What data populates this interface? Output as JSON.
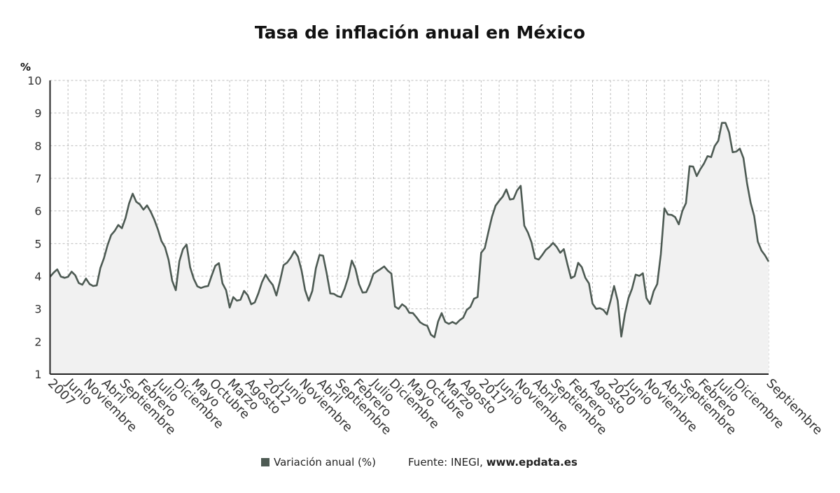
{
  "chart_data": {
    "type": "area",
    "title": "Tasa de inflación anual en México",
    "ylabel": "%",
    "xlabel": "",
    "ylim": [
      1,
      10
    ],
    "yticks": [
      1,
      2,
      3,
      4,
      5,
      6,
      7,
      8,
      9,
      10
    ],
    "grid": true,
    "legend_position": "bottom",
    "x_start": "2007-01",
    "x_end": "2023-09",
    "x_tick_labels": [
      {
        "label": "2007",
        "date": "2007-01"
      },
      {
        "label": "Junio",
        "date": "2007-06"
      },
      {
        "label": "Noviembre",
        "date": "2007-11"
      },
      {
        "label": "Abril",
        "date": "2008-04"
      },
      {
        "label": "Septiembre",
        "date": "2008-09"
      },
      {
        "label": "Febrero",
        "date": "2009-02"
      },
      {
        "label": "Julio",
        "date": "2009-07"
      },
      {
        "label": "Diciembre",
        "date": "2009-12"
      },
      {
        "label": "Mayo",
        "date": "2010-05"
      },
      {
        "label": "Octubre",
        "date": "2010-10"
      },
      {
        "label": "Marzo",
        "date": "2011-03"
      },
      {
        "label": "Agosto",
        "date": "2011-08"
      },
      {
        "label": "2012",
        "date": "2012-01"
      },
      {
        "label": "Junio",
        "date": "2012-06"
      },
      {
        "label": "Noviembre",
        "date": "2012-11"
      },
      {
        "label": "Abril",
        "date": "2013-04"
      },
      {
        "label": "Septiembre",
        "date": "2013-09"
      },
      {
        "label": "Febrero",
        "date": "2014-02"
      },
      {
        "label": "Julio",
        "date": "2014-07"
      },
      {
        "label": "Diciembre",
        "date": "2014-12"
      },
      {
        "label": "Mayo",
        "date": "2015-05"
      },
      {
        "label": "Octubre",
        "date": "2015-10"
      },
      {
        "label": "Marzo",
        "date": "2016-03"
      },
      {
        "label": "Agosto",
        "date": "2016-08"
      },
      {
        "label": "2017",
        "date": "2017-01"
      },
      {
        "label": "Junio",
        "date": "2017-06"
      },
      {
        "label": "Noviembre",
        "date": "2017-11"
      },
      {
        "label": "Abril",
        "date": "2018-04"
      },
      {
        "label": "Septiembre",
        "date": "2018-09"
      },
      {
        "label": "Febrero",
        "date": "2019-02"
      },
      {
        "label": "Agosto",
        "date": "2019-08"
      },
      {
        "label": "2020",
        "date": "2020-01"
      },
      {
        "label": "Junio",
        "date": "2020-06"
      },
      {
        "label": "Noviembre",
        "date": "2020-11"
      },
      {
        "label": "Abril",
        "date": "2021-04"
      },
      {
        "label": "Septiembre",
        "date": "2021-09"
      },
      {
        "label": "Febrero",
        "date": "2022-02"
      },
      {
        "label": "Julio",
        "date": "2022-07"
      },
      {
        "label": "Diciembre",
        "date": "2022-12"
      },
      {
        "label": "Septiembre",
        "date": "2023-09"
      }
    ],
    "series": [
      {
        "name": "Variación anual (%)",
        "color": "#4d5a53",
        "start": "2007-01",
        "frequency": "monthly",
        "values": [
          3.98,
          4.11,
          4.21,
          3.99,
          3.95,
          3.98,
          4.14,
          4.03,
          3.79,
          3.74,
          3.93,
          3.76,
          3.7,
          3.72,
          4.25,
          4.55,
          4.95,
          5.26,
          5.39,
          5.57,
          5.47,
          5.78,
          6.23,
          6.53,
          6.28,
          6.2,
          6.04,
          6.17,
          5.98,
          5.74,
          5.44,
          5.08,
          4.89,
          4.5,
          3.86,
          3.57,
          4.46,
          4.83,
          4.97,
          4.27,
          3.92,
          3.69,
          3.64,
          3.68,
          3.7,
          4.02,
          4.32,
          4.4,
          3.78,
          3.57,
          3.04,
          3.36,
          3.25,
          3.28,
          3.55,
          3.42,
          3.14,
          3.2,
          3.48,
          3.82,
          4.05,
          3.87,
          3.73,
          3.41,
          3.85,
          4.34,
          4.42,
          4.57,
          4.77,
          4.6,
          4.18,
          3.57,
          3.25,
          3.55,
          4.25,
          4.65,
          4.63,
          4.09,
          3.47,
          3.46,
          3.39,
          3.36,
          3.62,
          3.97,
          4.48,
          4.23,
          3.76,
          3.5,
          3.51,
          3.75,
          4.07,
          4.15,
          4.22,
          4.3,
          4.17,
          4.08,
          3.07,
          3.0,
          3.14,
          3.06,
          2.88,
          2.87,
          2.74,
          2.59,
          2.52,
          2.48,
          2.21,
          2.13,
          2.61,
          2.87,
          2.6,
          2.54,
          2.6,
          2.54,
          2.65,
          2.73,
          2.97,
          3.06,
          3.31,
          3.36,
          4.72,
          4.86,
          5.35,
          5.82,
          6.16,
          6.31,
          6.44,
          6.66,
          6.35,
          6.37,
          6.63,
          6.77,
          5.55,
          5.34,
          5.04,
          4.55,
          4.51,
          4.65,
          4.81,
          4.9,
          5.02,
          4.9,
          4.72,
          4.83,
          4.37,
          3.94,
          4.0,
          4.41,
          4.28,
          3.95,
          3.78,
          3.16,
          3.0,
          3.02,
          2.97,
          2.83,
          3.24,
          3.7,
          3.25,
          2.15,
          2.84,
          3.33,
          3.62,
          4.05,
          4.01,
          4.09,
          3.33,
          3.15,
          3.54,
          3.76,
          4.67,
          6.08,
          5.89,
          5.88,
          5.81,
          5.59,
          6.0,
          6.24,
          7.37,
          7.36,
          7.07,
          7.28,
          7.45,
          7.68,
          7.65,
          7.99,
          8.15,
          8.7,
          8.7,
          8.41,
          7.8,
          7.82,
          7.91,
          7.62,
          6.85,
          6.25,
          5.84,
          5.06,
          4.79,
          4.64,
          4.45
        ]
      }
    ]
  },
  "legend": {
    "label": "Variación anual (%)",
    "swatch_color": "#4d5a53"
  },
  "source": {
    "prefix": "Fuente: INEGI,",
    "site": "www.epdata.es"
  }
}
